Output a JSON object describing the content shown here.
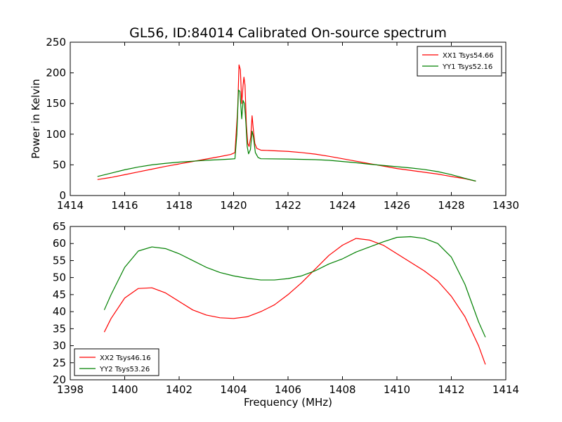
{
  "figure": {
    "title": "GL56, ID:84014 Calibrated On-source spectrum"
  },
  "chart_data": [
    {
      "type": "line",
      "title": "GL56, ID:84014 Calibrated On-source spectrum",
      "xlabel": "",
      "ylabel": "Power in Kelvin",
      "xlim": [
        1414,
        1430
      ],
      "ylim": [
        0,
        250
      ],
      "xticks": [
        "1414",
        "1416",
        "1418",
        "1420",
        "1422",
        "1424",
        "1426",
        "1428",
        "1430"
      ],
      "yticks": [
        "0",
        "50",
        "100",
        "150",
        "200",
        "250"
      ],
      "grid": false,
      "legend_position": "top-right",
      "series": [
        {
          "name": "XX1 Tsys54.66",
          "color": "#ff0000",
          "points": [
            [
              1415.0,
              26
            ],
            [
              1415.5,
              29.5
            ],
            [
              1416.0,
              34
            ],
            [
              1416.5,
              38.5
            ],
            [
              1417.0,
              43
            ],
            [
              1417.5,
              47.5
            ],
            [
              1418.0,
              51.5
            ],
            [
              1418.5,
              55.5
            ],
            [
              1419.0,
              59.5
            ],
            [
              1419.5,
              63.5
            ],
            [
              1419.9,
              67
            ],
            [
              1420.05,
              70
            ],
            [
              1420.15,
              140
            ],
            [
              1420.2,
              213
            ],
            [
              1420.25,
              205
            ],
            [
              1420.3,
              150
            ],
            [
              1420.35,
              180
            ],
            [
              1420.38,
              193
            ],
            [
              1420.42,
              180
            ],
            [
              1420.47,
              115
            ],
            [
              1420.52,
              85
            ],
            [
              1420.57,
              80
            ],
            [
              1420.63,
              95
            ],
            [
              1420.68,
              130
            ],
            [
              1420.72,
              110
            ],
            [
              1420.78,
              85
            ],
            [
              1420.85,
              77
            ],
            [
              1421.0,
              74
            ],
            [
              1421.5,
              73
            ],
            [
              1422.0,
              72
            ],
            [
              1422.5,
              70
            ],
            [
              1423.0,
              67.5
            ],
            [
              1423.5,
              64
            ],
            [
              1424.0,
              60
            ],
            [
              1424.5,
              56
            ],
            [
              1425.0,
              52
            ],
            [
              1425.5,
              48
            ],
            [
              1426.0,
              44
            ],
            [
              1426.5,
              41
            ],
            [
              1427.0,
              38
            ],
            [
              1427.5,
              35
            ],
            [
              1428.0,
              31
            ],
            [
              1428.5,
              27.5
            ],
            [
              1428.9,
              23.5
            ]
          ]
        },
        {
          "name": "YY1 Tsys52.16",
          "color": "#008000",
          "points": [
            [
              1415.0,
              31
            ],
            [
              1415.5,
              36.5
            ],
            [
              1416.0,
              42
            ],
            [
              1416.5,
              46.5
            ],
            [
              1417.0,
              50
            ],
            [
              1417.5,
              52.5
            ],
            [
              1418.0,
              54.5
            ],
            [
              1418.5,
              56
            ],
            [
              1419.0,
              57.5
            ],
            [
              1419.5,
              58.5
            ],
            [
              1419.9,
              59.5
            ],
            [
              1420.05,
              60
            ],
            [
              1420.12,
              100
            ],
            [
              1420.18,
              172
            ],
            [
              1420.23,
              170
            ],
            [
              1420.3,
              125
            ],
            [
              1420.35,
              155
            ],
            [
              1420.4,
              150
            ],
            [
              1420.45,
              120
            ],
            [
              1420.5,
              80
            ],
            [
              1420.55,
              68
            ],
            [
              1420.62,
              75
            ],
            [
              1420.68,
              105
            ],
            [
              1420.73,
              95
            ],
            [
              1420.8,
              70
            ],
            [
              1420.9,
              62
            ],
            [
              1421.0,
              60
            ],
            [
              1422.0,
              59.5
            ],
            [
              1423.0,
              58.5
            ],
            [
              1423.5,
              57.5
            ],
            [
              1424.0,
              55.5
            ],
            [
              1424.5,
              53.5
            ],
            [
              1425.0,
              51
            ],
            [
              1425.5,
              49
            ],
            [
              1426.0,
              47
            ],
            [
              1426.5,
              45
            ],
            [
              1427.0,
              42.5
            ],
            [
              1427.5,
              39
            ],
            [
              1428.0,
              34
            ],
            [
              1428.5,
              28
            ],
            [
              1428.9,
              23.5
            ]
          ]
        }
      ]
    },
    {
      "type": "line",
      "title": "",
      "xlabel": "Frequency (MHz)",
      "ylabel": "",
      "xlim": [
        1398,
        1414
      ],
      "ylim": [
        20,
        65
      ],
      "xticks": [
        "1398",
        "1400",
        "1402",
        "1404",
        "1406",
        "1408",
        "1410",
        "1412",
        "1414"
      ],
      "yticks": [
        "20",
        "25",
        "30",
        "35",
        "40",
        "45",
        "50",
        "55",
        "60",
        "65"
      ],
      "grid": false,
      "legend_position": "bottom-left",
      "series": [
        {
          "name": "XX2 Tsys46.16",
          "color": "#ff0000",
          "points": [
            [
              1399.25,
              34
            ],
            [
              1399.5,
              38
            ],
            [
              1400.0,
              44
            ],
            [
              1400.5,
              46.8
            ],
            [
              1401.0,
              47
            ],
            [
              1401.5,
              45.5
            ],
            [
              1402.0,
              43
            ],
            [
              1402.5,
              40.5
            ],
            [
              1403.0,
              39
            ],
            [
              1403.5,
              38.2
            ],
            [
              1404.0,
              38
            ],
            [
              1404.5,
              38.5
            ],
            [
              1405.0,
              40
            ],
            [
              1405.5,
              42
            ],
            [
              1406.0,
              45
            ],
            [
              1406.5,
              48.5
            ],
            [
              1407.0,
              52.5
            ],
            [
              1407.5,
              56.5
            ],
            [
              1408.0,
              59.5
            ],
            [
              1408.5,
              61.5
            ],
            [
              1409.0,
              61
            ],
            [
              1409.5,
              59.5
            ],
            [
              1410.0,
              57
            ],
            [
              1410.5,
              54.5
            ],
            [
              1411.0,
              52
            ],
            [
              1411.5,
              49
            ],
            [
              1412.0,
              44.5
            ],
            [
              1412.5,
              38.5
            ],
            [
              1413.0,
              30
            ],
            [
              1413.25,
              24.5
            ]
          ]
        },
        {
          "name": "YY2 Tsys53.26",
          "color": "#008000",
          "points": [
            [
              1399.25,
              40.5
            ],
            [
              1399.5,
              45
            ],
            [
              1400.0,
              53
            ],
            [
              1400.5,
              57.8
            ],
            [
              1401.0,
              59
            ],
            [
              1401.5,
              58.5
            ],
            [
              1402.0,
              57
            ],
            [
              1402.5,
              55
            ],
            [
              1403.0,
              53
            ],
            [
              1403.5,
              51.5
            ],
            [
              1404.0,
              50.5
            ],
            [
              1404.5,
              49.8
            ],
            [
              1405.0,
              49.3
            ],
            [
              1405.5,
              49.3
            ],
            [
              1406.0,
              49.7
            ],
            [
              1406.5,
              50.5
            ],
            [
              1407.0,
              52
            ],
            [
              1407.5,
              54
            ],
            [
              1408.0,
              55.5
            ],
            [
              1408.5,
              57.5
            ],
            [
              1409.0,
              59
            ],
            [
              1409.5,
              60.5
            ],
            [
              1410.0,
              61.8
            ],
            [
              1410.5,
              62
            ],
            [
              1411.0,
              61.5
            ],
            [
              1411.5,
              60
            ],
            [
              1412.0,
              56
            ],
            [
              1412.5,
              48
            ],
            [
              1413.0,
              37
            ],
            [
              1413.25,
              32.5
            ]
          ]
        }
      ]
    }
  ]
}
